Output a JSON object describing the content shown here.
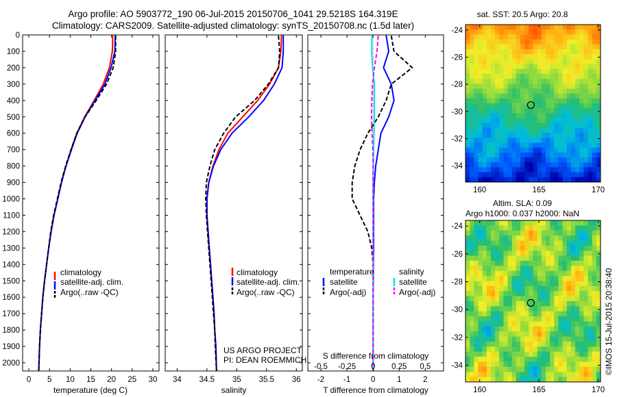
{
  "title": {
    "line1": "Argo profile: AO 5903772_190 06-Jul-2015 20150706_1041 29.5218S 164.319E",
    "line2": "Climatology: CARS2009. Satellite-adjusted climatology: synTS_20150708.nc (1.5d later)"
  },
  "colors": {
    "climatology": "#ff0000",
    "satellite": "#0000ff",
    "argo": "#000000",
    "sal_satellite": "#00e5e5",
    "sal_argo": "#ff00ff"
  },
  "chart_data": [
    {
      "type": "line",
      "xlabel": "temperature (deg C)",
      "ylabel": "",
      "xlim": [
        -1.5,
        31.5
      ],
      "ylim": [
        2050,
        0
      ],
      "xticks": [
        0,
        5,
        10,
        15,
        20,
        25,
        30
      ],
      "yticks": [
        0,
        100,
        200,
        300,
        400,
        500,
        600,
        700,
        800,
        900,
        1000,
        1100,
        1200,
        1300,
        1400,
        1500,
        1600,
        1700,
        1800,
        1900,
        2000
      ],
      "legend": [
        "climatology",
        "satellite-adj. clim.",
        "Argo(..raw -QC)"
      ],
      "series": [
        {
          "name": "climatology",
          "color": "#ff0000",
          "x": [
            20.3,
            20.2,
            19.5,
            18.0,
            15.8,
            13.5,
            11.6,
            10.2,
            9.0,
            7.9,
            7.0,
            6.1,
            5.4,
            4.8,
            4.3,
            3.8,
            3.4,
            3.1,
            2.8,
            2.6,
            2.4
          ],
          "y": [
            0,
            100,
            200,
            300,
            400,
            500,
            600,
            700,
            800,
            900,
            1000,
            1100,
            1200,
            1300,
            1400,
            1500,
            1600,
            1700,
            1800,
            1900,
            2050
          ]
        },
        {
          "name": "satellite-adj. clim.",
          "color": "#0000ff",
          "x": [
            20.9,
            20.8,
            19.9,
            18.4,
            16.0,
            13.6,
            11.7,
            10.3,
            9.0,
            7.9,
            7.0,
            6.1,
            5.4,
            4.8,
            4.3,
            3.8,
            3.4,
            3.1,
            2.8,
            2.6,
            2.4
          ],
          "y": [
            0,
            100,
            200,
            300,
            400,
            500,
            600,
            700,
            800,
            900,
            1000,
            1100,
            1200,
            1300,
            1400,
            1500,
            1600,
            1700,
            1800,
            1900,
            2050
          ]
        },
        {
          "name": "Argo(..raw -QC)",
          "color": "#000000",
          "dash": true,
          "x": [
            21.0,
            21.0,
            20.4,
            18.8,
            16.3,
            13.6,
            11.6,
            10.2,
            8.9,
            7.8,
            6.9,
            6.0,
            5.3,
            4.8,
            4.3,
            3.8,
            3.4,
            3.1,
            2.8,
            2.6,
            2.4
          ],
          "y": [
            5,
            100,
            200,
            300,
            400,
            500,
            600,
            700,
            800,
            900,
            1000,
            1100,
            1200,
            1300,
            1400,
            1500,
            1600,
            1700,
            1800,
            1900,
            2050
          ]
        }
      ]
    },
    {
      "type": "line",
      "xlabel": "salinity",
      "xlim": [
        33.8,
        36.1
      ],
      "ylim": [
        2050,
        0
      ],
      "xticks": [
        34,
        34.5,
        35,
        35.5,
        36
      ],
      "legend": [
        "climatology",
        "satellite-adj. clim.",
        "Argo(..raw -QC)"
      ],
      "annotations": [
        "US ARGO PROJECT",
        "PI: DEAN ROEMMICH"
      ],
      "series": [
        {
          "name": "climatology",
          "color": "#ff0000",
          "x": [
            35.75,
            35.74,
            35.7,
            35.55,
            35.35,
            35.1,
            34.85,
            34.7,
            34.6,
            34.53,
            34.5,
            34.5,
            34.52,
            34.54,
            34.56,
            34.58,
            34.6,
            34.62,
            34.63,
            34.65,
            34.66
          ],
          "y": [
            0,
            100,
            200,
            300,
            400,
            500,
            600,
            700,
            800,
            900,
            1000,
            1100,
            1200,
            1300,
            1400,
            1500,
            1600,
            1700,
            1800,
            1900,
            2050
          ]
        },
        {
          "name": "satellite-adj. clim.",
          "color": "#0000ff",
          "x": [
            35.78,
            35.78,
            35.76,
            35.63,
            35.45,
            35.2,
            34.92,
            34.73,
            34.61,
            34.53,
            34.5,
            34.5,
            34.52,
            34.54,
            34.56,
            34.58,
            34.6,
            34.62,
            34.63,
            34.65,
            34.66
          ],
          "y": [
            0,
            100,
            200,
            300,
            400,
            500,
            600,
            700,
            800,
            900,
            1000,
            1100,
            1200,
            1300,
            1400,
            1500,
            1600,
            1700,
            1800,
            1900,
            2050
          ]
        },
        {
          "name": "Argo(..raw -QC)",
          "color": "#000000",
          "dash": true,
          "x": [
            35.7,
            35.72,
            35.7,
            35.53,
            35.3,
            34.98,
            34.78,
            34.63,
            34.55,
            34.49,
            34.48,
            34.49,
            34.51,
            34.53,
            34.55,
            34.57,
            34.59,
            34.61,
            34.63,
            34.64,
            34.66
          ],
          "y": [
            5,
            100,
            200,
            300,
            400,
            500,
            600,
            700,
            800,
            900,
            1000,
            1100,
            1200,
            1300,
            1400,
            1500,
            1600,
            1700,
            1800,
            1900,
            2050
          ]
        }
      ]
    },
    {
      "type": "line",
      "xlabel": "T difference from climatology",
      "xlabel_top": "S difference from climatology",
      "xlim": [
        -2.5,
        2.7
      ],
      "ylim": [
        2050,
        0
      ],
      "xticks": [
        -2,
        -1,
        0,
        1,
        2
      ],
      "xticks_sal": [
        "-0.5",
        "-0.25",
        "0",
        "0.25",
        "0.5"
      ],
      "legend_headers": [
        "temperature",
        "salinity"
      ],
      "legend": [
        "satellite",
        "Argo(-adj)",
        "satellite",
        "Argo(-adj)"
      ],
      "series": [
        {
          "name": "temperature satellite",
          "color": "#0000ff",
          "x": [
            0.5,
            0.6,
            0.4,
            0.7,
            0.8,
            0.6,
            0.3,
            0.2,
            0.1,
            0.05,
            0.02,
            0.02,
            0.02,
            0.02,
            0.01,
            0.01,
            0.0,
            0.0,
            0.0,
            0.0,
            0.0
          ],
          "y": [
            0,
            100,
            200,
            300,
            400,
            500,
            600,
            700,
            800,
            900,
            1000,
            1100,
            1200,
            1300,
            1400,
            1500,
            1600,
            1700,
            1800,
            1900,
            2050
          ]
        },
        {
          "name": "temperature Argo(-adj)",
          "color": "#000000",
          "dash": true,
          "x": [
            0.7,
            0.8,
            1.5,
            0.7,
            0.5,
            0.2,
            -0.2,
            -0.5,
            -0.7,
            -0.8,
            -0.8,
            -0.5,
            -0.2,
            -0.05,
            0.0,
            0.0,
            0.0,
            0.0,
            0.0,
            0.0,
            0.0
          ],
          "y": [
            5,
            100,
            200,
            300,
            400,
            500,
            600,
            700,
            800,
            900,
            1000,
            1100,
            1200,
            1300,
            1400,
            1500,
            1600,
            1700,
            1800,
            1900,
            2050
          ]
        },
        {
          "name": "salinity satellite",
          "color": "#00e5e5",
          "x": [
            -0.05,
            -0.05,
            -0.02,
            0.05,
            0.05,
            0.05,
            0.04,
            0.02,
            0.01,
            0.0,
            0.0,
            0.0,
            0.0,
            0.0,
            0.0,
            0.0,
            0.0,
            0.0,
            0.0,
            0.0,
            0.0
          ],
          "y": [
            0,
            100,
            200,
            300,
            400,
            500,
            600,
            700,
            800,
            900,
            1000,
            1100,
            1200,
            1300,
            1400,
            1500,
            1600,
            1700,
            1800,
            1900,
            2050
          ]
        },
        {
          "name": "salinity Argo(-adj)",
          "color": "#ff00ff",
          "dash": true,
          "x": [
            0.2,
            0.15,
            0.05,
            -0.02,
            -0.05,
            -0.06,
            -0.04,
            -0.01,
            0.0,
            0.0,
            0.0,
            0.0,
            0.0,
            0.0,
            0.0,
            0.0,
            0.0,
            0.0,
            0.0,
            0.0,
            0.0
          ],
          "y": [
            5,
            100,
            200,
            300,
            400,
            500,
            600,
            700,
            800,
            900,
            1000,
            1100,
            1200,
            1300,
            1400,
            1500,
            1600,
            1700,
            1800,
            1900,
            2050
          ]
        }
      ]
    },
    {
      "type": "heatmap",
      "title": "sat. SST: 20.5  Argo: 20.8",
      "xticks": [
        160,
        165,
        170
      ],
      "yticks": [
        -24,
        -26,
        -28,
        -30,
        -32,
        -34
      ],
      "xlim": [
        158.8,
        170.2
      ],
      "ylim": [
        -35.2,
        -23.6
      ],
      "marker": {
        "lon": 164.319,
        "lat": -29.5218
      }
    },
    {
      "type": "heatmap",
      "title_line1": "Altim. SLA: 0.09",
      "title_line2": "Argo h1000: 0.037 h2000: NaN",
      "xticks": [
        160,
        165,
        170
      ],
      "yticks": [
        -24,
        -26,
        -28,
        -30,
        -32,
        -34
      ],
      "xlim": [
        158.8,
        170.2
      ],
      "ylim": [
        -35.2,
        -23.6
      ],
      "marker": {
        "lon": 164.319,
        "lat": -29.5218
      }
    }
  ],
  "credit": "©IMOS 15-Jul-2015 20:38:40"
}
